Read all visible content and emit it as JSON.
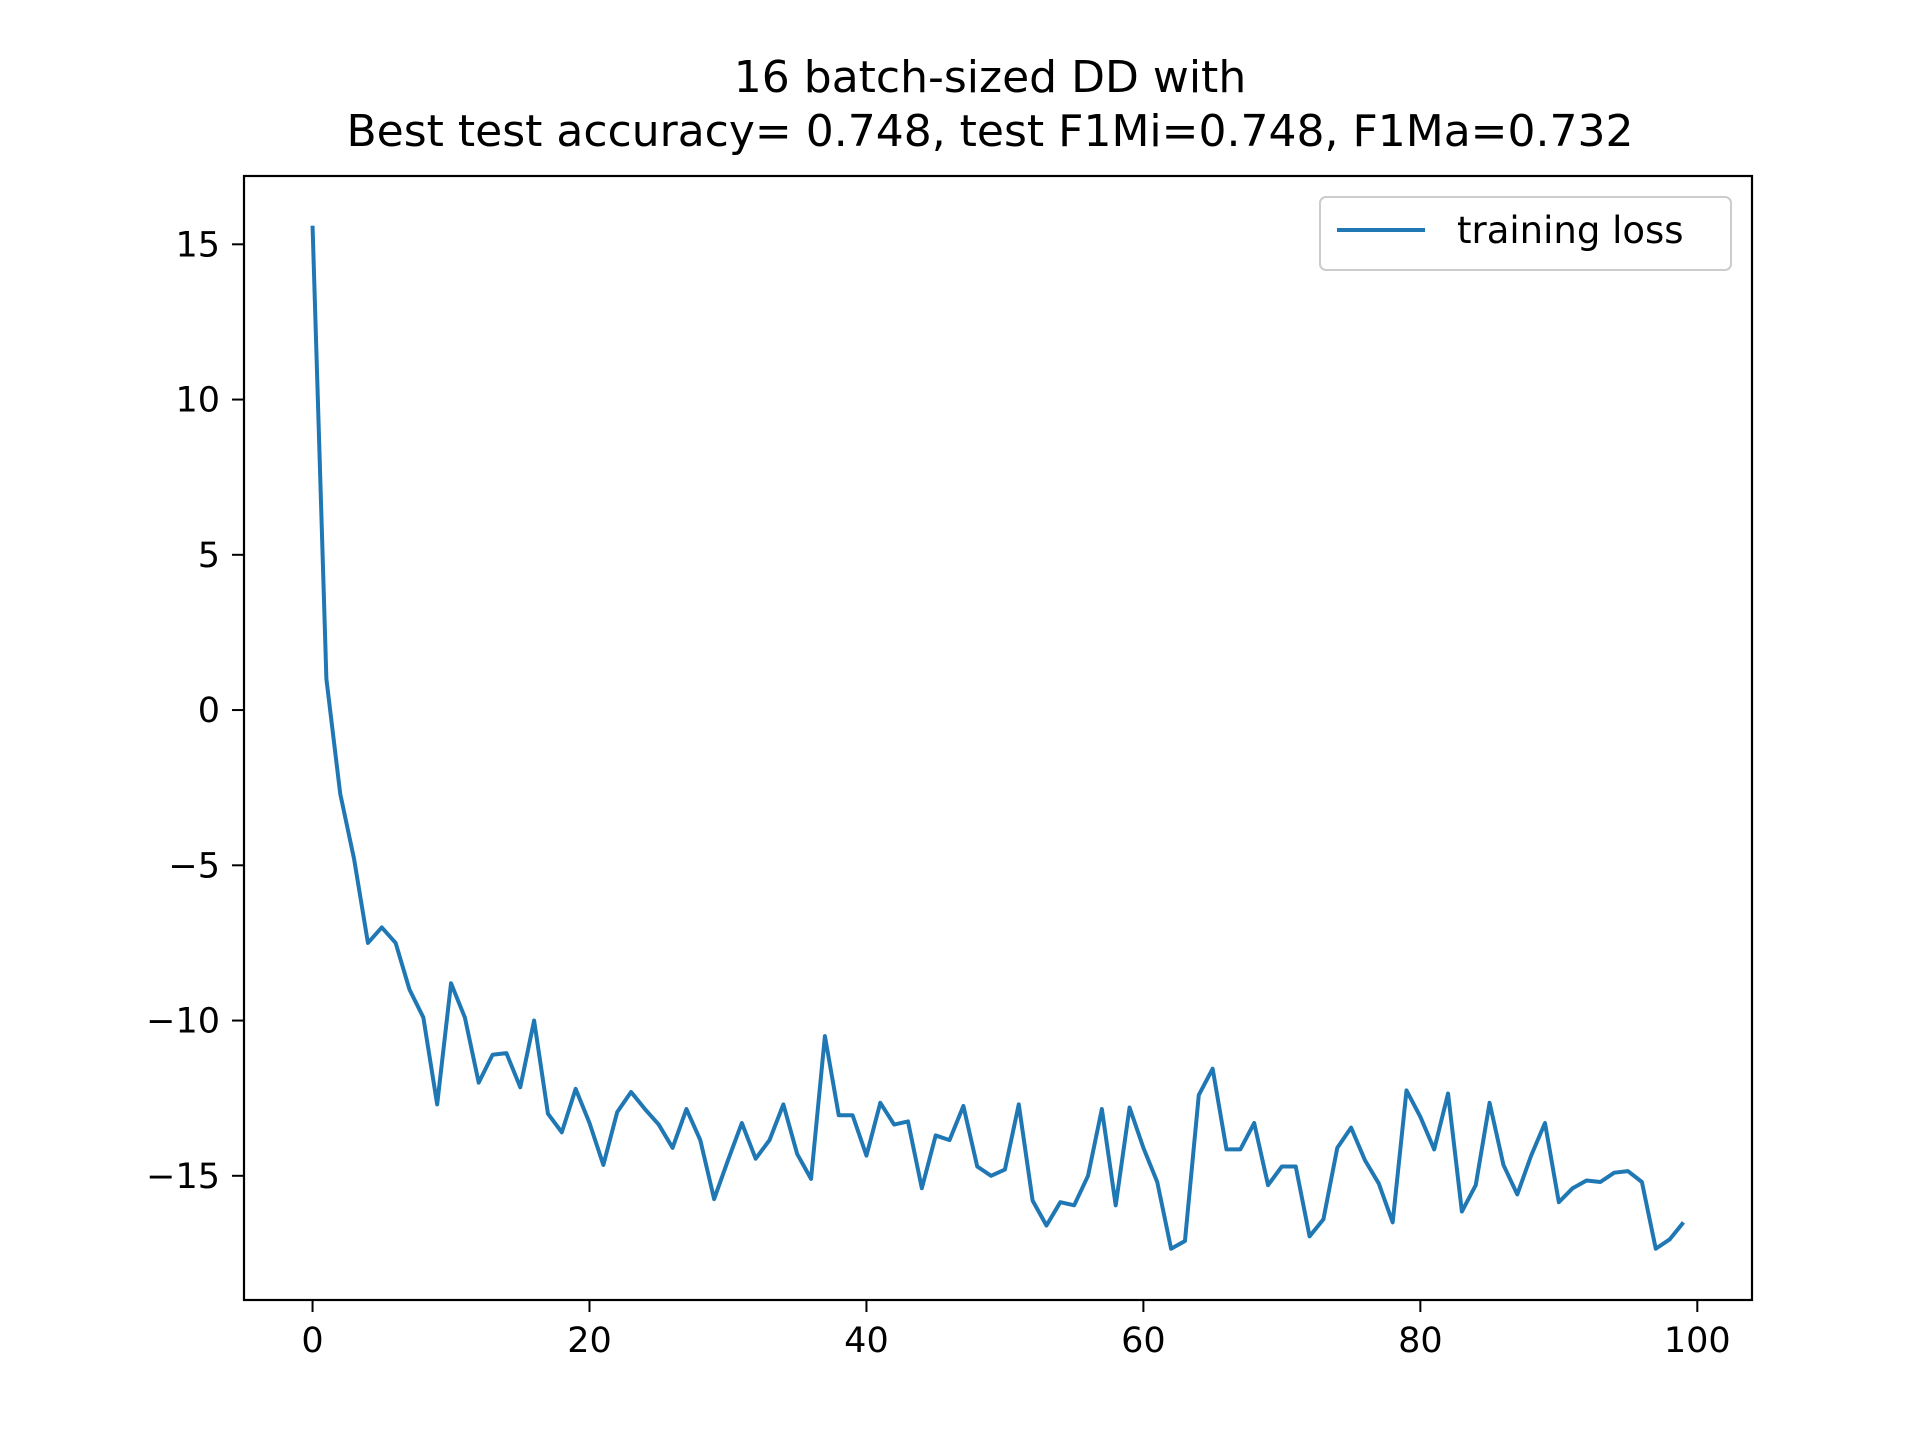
{
  "chart_data": {
    "type": "line",
    "title": "16 batch-sized DD with",
    "subtitle": "Best test accuracy= 0.748, test F1Mi=0.748, F1Ma=0.732",
    "xlabel": "",
    "ylabel": "",
    "xlim": [
      -4.95,
      103.95
    ],
    "ylim": [
      -19.0,
      17.2
    ],
    "xticks": [
      0,
      20,
      40,
      60,
      80,
      100
    ],
    "xtick_labels": [
      "0",
      "20",
      "40",
      "60",
      "80",
      "100"
    ],
    "yticks": [
      15,
      10,
      5,
      0,
      -5,
      -10,
      -15
    ],
    "ytick_labels": [
      "15",
      "10",
      "5",
      "0",
      "−5",
      "−10",
      "−15"
    ],
    "grid": false,
    "legend_position": "top-right",
    "series": [
      {
        "name": "training loss",
        "color": "#1f77b4",
        "x": [
          0,
          1,
          2,
          3,
          4,
          5,
          6,
          7,
          8,
          9,
          10,
          11,
          12,
          13,
          14,
          15,
          16,
          17,
          18,
          19,
          20,
          21,
          22,
          23,
          24,
          25,
          26,
          27,
          28,
          29,
          30,
          31,
          32,
          33,
          34,
          35,
          36,
          37,
          38,
          39,
          40,
          41,
          42,
          43,
          44,
          45,
          46,
          47,
          48,
          49,
          50,
          51,
          52,
          53,
          54,
          55,
          56,
          57,
          58,
          59,
          60,
          61,
          62,
          63,
          64,
          65,
          66,
          67,
          68,
          69,
          70,
          71,
          72,
          73,
          74,
          75,
          76,
          77,
          78,
          79,
          80,
          81,
          82,
          83,
          84,
          85,
          86,
          87,
          88,
          89,
          90,
          91,
          92,
          93,
          94,
          95,
          96,
          97,
          98,
          99
        ],
        "y": [
          15.6,
          1.0,
          -2.7,
          -4.8,
          -7.5,
          -7.0,
          -7.5,
          -9.0,
          -9.9,
          -12.7,
          -8.8,
          -9.9,
          -12.0,
          -11.1,
          -11.05,
          -12.15,
          -10.0,
          -13.0,
          -13.6,
          -12.2,
          -13.3,
          -14.65,
          -12.95,
          -12.3,
          -12.85,
          -13.35,
          -14.1,
          -12.85,
          -13.85,
          -15.75,
          -14.5,
          -13.3,
          -14.45,
          -13.85,
          -12.7,
          -14.3,
          -15.1,
          -10.5,
          -13.05,
          -13.05,
          -14.35,
          -12.65,
          -13.35,
          -13.25,
          -15.4,
          -13.7,
          -13.85,
          -12.75,
          -14.7,
          -15.0,
          -14.8,
          -12.7,
          -15.8,
          -16.6,
          -15.85,
          -15.95,
          -15.0,
          -12.85,
          -15.95,
          -12.8,
          -14.1,
          -15.2,
          -17.35,
          -17.1,
          -12.4,
          -11.55,
          -14.15,
          -14.15,
          -13.3,
          -15.3,
          -14.7,
          -14.7,
          -16.95,
          -16.4,
          -14.1,
          -13.45,
          -14.5,
          -15.25,
          -16.5,
          -12.25,
          -13.1,
          -14.15,
          -12.35,
          -16.15,
          -15.3,
          -12.65,
          -14.65,
          -15.6,
          -14.35,
          -13.3,
          -15.85,
          -15.4,
          -15.15,
          -15.2,
          -14.9,
          -14.85,
          -15.2,
          -17.35,
          -17.05,
          -16.5
        ]
      }
    ]
  }
}
